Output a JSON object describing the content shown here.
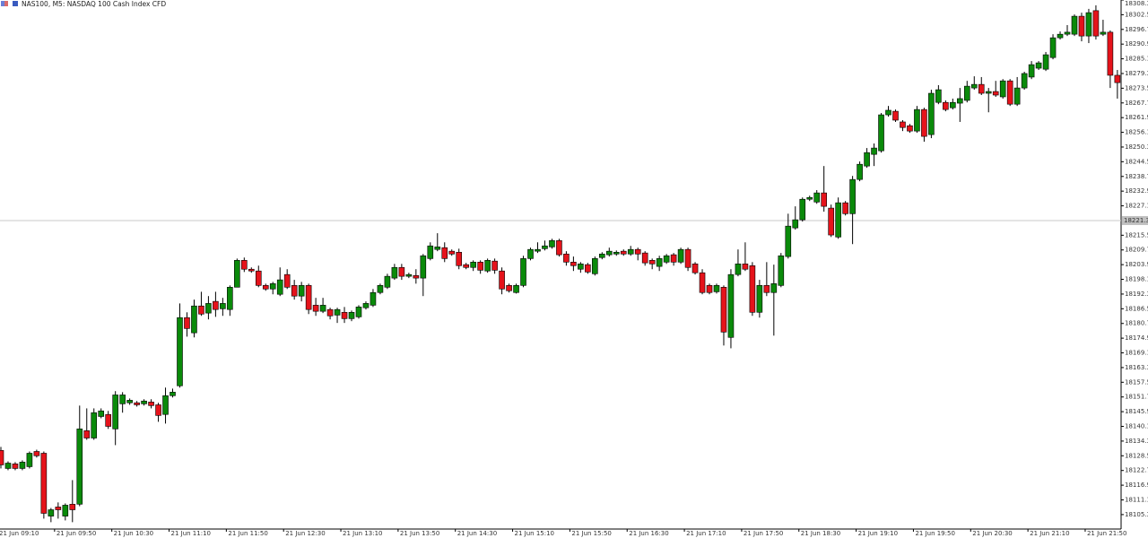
{
  "chart_data": {
    "type": "candlestick",
    "title": "NAS100, M5: NASDAQ 100 Cash Index CFD",
    "up_color": "#0a8a0a",
    "down_color": "#e5131b",
    "border_color": "#000000",
    "ylim": [
      18099.6,
      18308.3
    ],
    "yticks": [
      18105.3,
      18111.1,
      18116.9,
      18122.7,
      18128.5,
      18134.3,
      18140.1,
      18145.9,
      18151.7,
      18157.5,
      18163.3,
      18169.1,
      18174.9,
      18180.7,
      18186.5,
      18192.3,
      18198.1,
      18203.9,
      18209.7,
      18215.5,
      18227.1,
      18232.9,
      18238.7,
      18244.5,
      18250.3,
      18256.1,
      18261.9,
      18267.7,
      18273.5,
      18279.3,
      18285.1,
      18290.9,
      18296.7,
      18302.5,
      18308.3
    ],
    "hline": 18221.3,
    "xticks": [
      {
        "value": 0,
        "label": "21 Jun 09:10"
      },
      {
        "value": 8,
        "label": "21 Jun 09:50"
      },
      {
        "value": 16,
        "label": "21 Jun 10:30"
      },
      {
        "value": 24,
        "label": "21 Jun 11:10"
      },
      {
        "value": 32,
        "label": "21 Jun 11:50"
      },
      {
        "value": 40,
        "label": "21 Jun 12:30"
      },
      {
        "value": 48,
        "label": "21 Jun 13:10"
      },
      {
        "value": 56,
        "label": "21 Jun 13:50"
      },
      {
        "value": 64,
        "label": "21 Jun 14:30"
      },
      {
        "value": 72,
        "label": "21 Jun 15:10"
      },
      {
        "value": 80,
        "label": "21 Jun 15:50"
      },
      {
        "value": 88,
        "label": "21 Jun 16:30"
      },
      {
        "value": 96,
        "label": "21 Jun 17:10"
      },
      {
        "value": 104,
        "label": "21 Jun 17:50"
      },
      {
        "value": 112,
        "label": "21 Jun 18:30"
      },
      {
        "value": 120,
        "label": "21 Jun 19:10"
      },
      {
        "value": 128,
        "label": "21 Jun 19:50"
      },
      {
        "value": 136,
        "label": "21 Jun 20:30"
      },
      {
        "value": 144,
        "label": "21 Jun 21:10"
      },
      {
        "value": 152,
        "label": "21 Jun 21:50"
      }
    ],
    "ohlc": [
      [
        18130.6,
        18132.0,
        18123.5,
        18124.9
      ],
      [
        18123.5,
        18126.3,
        18122.8,
        18125.6
      ],
      [
        18125.3,
        18126.0,
        18122.8,
        18123.5
      ],
      [
        18123.5,
        18126.7,
        18122.8,
        18126.0
      ],
      [
        18124.2,
        18130.2,
        18123.5,
        18129.5
      ],
      [
        18130.2,
        18130.9,
        18127.8,
        18128.5
      ],
      [
        18129.5,
        18130.2,
        18103.7,
        18105.8
      ],
      [
        18104.7,
        18107.9,
        18102.3,
        18107.2
      ],
      [
        18108.3,
        18110.1,
        18103.7,
        18107.2
      ],
      [
        18104.7,
        18109.7,
        18103.0,
        18109.0
      ],
      [
        18109.4,
        18118.9,
        18102.3,
        18107.2
      ],
      [
        18109.4,
        18148.3,
        18108.6,
        18139.1
      ],
      [
        18138.4,
        18147.2,
        18134.8,
        18135.5
      ],
      [
        18135.5,
        18147.2,
        18134.8,
        18145.5
      ],
      [
        18144.0,
        18147.2,
        18143.3,
        18146.2
      ],
      [
        18144.8,
        18146.2,
        18139.1,
        18140.1
      ],
      [
        18139.1,
        18154.0,
        18132.7,
        18152.5
      ],
      [
        18149.0,
        18153.6,
        18145.5,
        18152.5
      ],
      [
        18149.4,
        18151.1,
        18148.6,
        18150.4
      ],
      [
        18149.4,
        18150.1,
        18147.9,
        18148.6
      ],
      [
        18149.0,
        18150.8,
        18148.3,
        18150.1
      ],
      [
        18149.7,
        18150.8,
        18147.2,
        18148.3
      ],
      [
        18148.6,
        18149.4,
        18141.9,
        18144.4
      ],
      [
        18144.8,
        18155.4,
        18141.2,
        18152.2
      ],
      [
        18152.2,
        18155.0,
        18151.5,
        18153.6
      ],
      [
        18156.1,
        18188.6,
        18155.4,
        18183.0
      ],
      [
        18183.0,
        18185.1,
        18175.5,
        18178.7
      ],
      [
        18177.0,
        18190.1,
        18175.2,
        18187.6
      ],
      [
        18187.6,
        18193.2,
        18183.7,
        18184.4
      ],
      [
        18184.8,
        18191.5,
        18182.3,
        18188.6
      ],
      [
        18189.4,
        18193.2,
        18183.3,
        18186.2
      ],
      [
        18186.5,
        18190.8,
        18183.7,
        18188.6
      ],
      [
        18186.2,
        18195.7,
        18183.7,
        18195.0
      ],
      [
        18195.0,
        18206.3,
        18195.0,
        18205.6
      ],
      [
        18205.6,
        18206.7,
        18201.0,
        18202.1
      ],
      [
        18202.1,
        18202.8,
        18200.7,
        18201.4
      ],
      [
        18201.4,
        18203.5,
        18195.0,
        18195.7
      ],
      [
        18195.7,
        18196.4,
        18193.6,
        18194.3
      ],
      [
        18194.3,
        18197.1,
        18192.2,
        18196.4
      ],
      [
        18192.2,
        18202.8,
        18191.5,
        18197.9
      ],
      [
        18200.0,
        18202.1,
        18194.3,
        18195.0
      ],
      [
        18195.7,
        18197.9,
        18190.1,
        18191.5
      ],
      [
        18191.5,
        18197.1,
        18189.4,
        18195.7
      ],
      [
        18195.7,
        18196.4,
        18184.4,
        18186.2
      ],
      [
        18187.9,
        18190.8,
        18183.7,
        18185.5
      ],
      [
        18185.5,
        18190.8,
        18184.8,
        18187.9
      ],
      [
        18186.2,
        18186.9,
        18182.3,
        18183.7
      ],
      [
        18184.0,
        18186.9,
        18180.9,
        18186.2
      ],
      [
        18185.1,
        18187.2,
        18180.9,
        18182.6
      ],
      [
        18182.6,
        18185.8,
        18181.6,
        18185.1
      ],
      [
        18183.3,
        18187.9,
        18182.6,
        18187.2
      ],
      [
        18186.9,
        18189.4,
        18186.2,
        18188.6
      ],
      [
        18187.9,
        18194.3,
        18187.2,
        18192.9
      ],
      [
        18192.9,
        18196.4,
        18192.2,
        18195.7
      ],
      [
        18195.0,
        18200.3,
        18194.3,
        18199.3
      ],
      [
        18198.6,
        18204.2,
        18197.9,
        18202.8
      ],
      [
        18202.8,
        18204.2,
        18197.9,
        18199.3
      ],
      [
        18199.3,
        18200.7,
        18198.6,
        18200.0
      ],
      [
        18199.6,
        18202.1,
        18196.4,
        18198.6
      ],
      [
        18198.6,
        18208.1,
        18191.5,
        18207.4
      ],
      [
        18206.3,
        18212.7,
        18205.6,
        18211.3
      ],
      [
        18209.9,
        18216.3,
        18209.2,
        18210.9
      ],
      [
        18210.6,
        18212.7,
        18204.9,
        18206.3
      ],
      [
        18209.2,
        18209.9,
        18207.4,
        18208.1
      ],
      [
        18208.8,
        18210.2,
        18202.1,
        18203.5
      ],
      [
        18203.9,
        18204.6,
        18202.1,
        18202.8
      ],
      [
        18202.8,
        18205.6,
        18201.4,
        18204.9
      ],
      [
        18204.9,
        18205.6,
        18200.3,
        18201.7
      ],
      [
        18201.4,
        18206.3,
        18200.7,
        18205.6
      ],
      [
        18205.3,
        18206.3,
        18200.3,
        18201.7
      ],
      [
        18201.4,
        18202.8,
        18192.2,
        18194.3
      ],
      [
        18195.7,
        18196.4,
        18192.9,
        18193.6
      ],
      [
        18192.9,
        18196.4,
        18192.5,
        18195.7
      ],
      [
        18195.7,
        18207.4,
        18195.0,
        18206.3
      ],
      [
        18206.3,
        18210.6,
        18205.6,
        18209.9
      ],
      [
        18209.2,
        18212.7,
        18208.5,
        18209.9
      ],
      [
        18210.2,
        18213.4,
        18209.5,
        18211.3
      ],
      [
        18210.9,
        18214.1,
        18210.2,
        18213.4
      ],
      [
        18213.4,
        18214.1,
        18207.1,
        18207.8
      ],
      [
        18208.1,
        18209.2,
        18203.5,
        18204.9
      ],
      [
        18204.9,
        18207.1,
        18201.4,
        18203.5
      ],
      [
        18202.1,
        18204.9,
        18200.7,
        18204.2
      ],
      [
        18203.9,
        18204.6,
        18200.3,
        18201.0
      ],
      [
        18200.3,
        18207.1,
        18199.6,
        18206.3
      ],
      [
        18206.7,
        18208.8,
        18206.0,
        18208.1
      ],
      [
        18207.8,
        18210.6,
        18207.1,
        18209.2
      ],
      [
        18208.1,
        18209.5,
        18207.4,
        18208.8
      ],
      [
        18209.2,
        18209.9,
        18207.4,
        18208.1
      ],
      [
        18208.1,
        18211.3,
        18207.4,
        18209.9
      ],
      [
        18209.9,
        18210.6,
        18205.6,
        18208.1
      ],
      [
        18208.5,
        18209.2,
        18203.5,
        18204.6
      ],
      [
        18205.6,
        18206.3,
        18202.1,
        18204.2
      ],
      [
        18203.2,
        18207.4,
        18201.4,
        18206.3
      ],
      [
        18204.9,
        18208.1,
        18204.2,
        18207.4
      ],
      [
        18207.8,
        18208.5,
        18203.5,
        18204.9
      ],
      [
        18204.9,
        18210.6,
        18204.2,
        18209.9
      ],
      [
        18209.9,
        18210.6,
        18201.4,
        18202.8
      ],
      [
        18204.2,
        18204.9,
        18200.0,
        18200.7
      ],
      [
        18200.7,
        18202.1,
        18192.2,
        18192.9
      ],
      [
        18195.7,
        18196.4,
        18192.2,
        18192.9
      ],
      [
        18193.2,
        18196.4,
        18192.5,
        18195.7
      ],
      [
        18195.0,
        18195.7,
        18172.0,
        18177.3
      ],
      [
        18175.2,
        18202.1,
        18170.9,
        18200.0
      ],
      [
        18200.0,
        18209.9,
        18199.3,
        18204.2
      ],
      [
        18204.2,
        18212.7,
        18201.4,
        18202.1
      ],
      [
        18203.5,
        18204.9,
        18183.7,
        18185.1
      ],
      [
        18185.1,
        18197.9,
        18183.0,
        18195.7
      ],
      [
        18195.7,
        18204.9,
        18191.5,
        18192.9
      ],
      [
        18192.9,
        18203.9,
        18175.9,
        18196.4
      ],
      [
        18195.7,
        18208.5,
        18195.0,
        18207.4
      ],
      [
        18207.1,
        18224.0,
        18206.3,
        18219.1
      ],
      [
        18218.4,
        18226.9,
        18217.7,
        18221.6
      ],
      [
        18221.6,
        18230.4,
        18220.9,
        18229.7
      ],
      [
        18229.7,
        18231.1,
        18229.0,
        18230.4
      ],
      [
        18228.6,
        18233.3,
        18227.9,
        18232.2
      ],
      [
        18232.2,
        18242.8,
        18224.8,
        18226.9
      ],
      [
        18226.2,
        18227.6,
        18214.8,
        18215.6
      ],
      [
        18214.8,
        18230.4,
        18214.1,
        18228.3
      ],
      [
        18228.3,
        18229.0,
        18223.3,
        18224.0
      ],
      [
        18224.0,
        18238.9,
        18212.0,
        18237.5
      ],
      [
        18237.5,
        18244.6,
        18236.8,
        18243.5
      ],
      [
        18242.8,
        18249.9,
        18242.1,
        18248.1
      ],
      [
        18247.4,
        18251.7,
        18242.8,
        18249.9
      ],
      [
        18248.8,
        18263.7,
        18248.1,
        18263.0
      ],
      [
        18263.0,
        18266.5,
        18262.3,
        18264.8
      ],
      [
        18264.4,
        18265.1,
        18260.2,
        18260.9
      ],
      [
        18260.2,
        18260.9,
        18256.6,
        18258.0
      ],
      [
        18258.7,
        18259.4,
        18255.9,
        18256.6
      ],
      [
        18256.6,
        18266.5,
        18255.9,
        18265.1
      ],
      [
        18265.1,
        18265.8,
        18252.4,
        18254.5
      ],
      [
        18255.2,
        18272.9,
        18253.8,
        18271.5
      ],
      [
        18267.9,
        18274.7,
        18267.2,
        18272.9
      ],
      [
        18267.9,
        18268.7,
        18264.4,
        18265.1
      ],
      [
        18265.8,
        18269.4,
        18265.1,
        18267.9
      ],
      [
        18267.6,
        18273.6,
        18260.2,
        18269.4
      ],
      [
        18268.7,
        18276.4,
        18267.9,
        18274.3
      ],
      [
        18273.6,
        18278.2,
        18272.9,
        18275.0
      ],
      [
        18275.0,
        18277.9,
        18270.8,
        18271.5
      ],
      [
        18271.5,
        18273.6,
        18264.0,
        18272.2
      ],
      [
        18272.2,
        18276.4,
        18270.1,
        18270.8
      ],
      [
        18270.1,
        18277.1,
        18269.4,
        18276.4
      ],
      [
        18276.4,
        18277.1,
        18266.5,
        18267.2
      ],
      [
        18267.2,
        18277.9,
        18266.5,
        18273.6
      ],
      [
        18273.6,
        18280.0,
        18272.9,
        18279.3
      ],
      [
        18277.9,
        18284.2,
        18277.1,
        18282.8
      ],
      [
        18281.4,
        18284.2,
        18280.7,
        18283.5
      ],
      [
        18281.0,
        18287.8,
        18280.3,
        18286.7
      ],
      [
        18285.6,
        18294.8,
        18284.9,
        18293.4
      ],
      [
        18293.4,
        18295.9,
        18292.7,
        18294.8
      ],
      [
        18294.8,
        18298.4,
        18294.1,
        18295.6
      ],
      [
        18294.8,
        18302.6,
        18294.1,
        18301.9
      ],
      [
        18301.9,
        18303.3,
        18292.0,
        18294.1
      ],
      [
        18294.1,
        18304.8,
        18291.3,
        18303.3
      ],
      [
        18304.1,
        18306.2,
        18292.7,
        18294.1
      ],
      [
        18294.8,
        18300.5,
        18294.1,
        18295.6
      ],
      [
        18295.6,
        18296.3,
        18273.6,
        18278.6
      ],
      [
        18278.6,
        18280.7,
        18269.4,
        18275.7
      ]
    ]
  }
}
